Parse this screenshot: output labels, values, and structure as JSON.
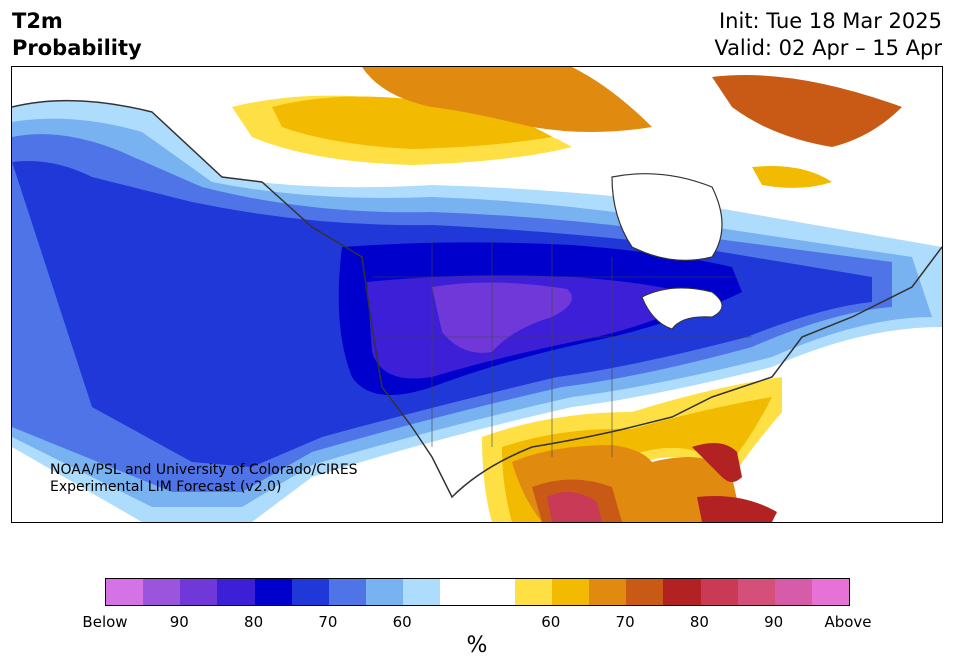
{
  "header": {
    "title_line1": "T2m",
    "title_line2": "Probability",
    "init": "Init: Tue 18 Mar 2025",
    "valid": "Valid: 02 Apr – 15 Apr"
  },
  "map": {
    "credit_line1": "NOAA/PSL and University of Colorado/CIRES",
    "credit_line2": "Experimental LIM Forecast (v2.0)"
  },
  "colorbar": {
    "colors": [
      "#d472e6",
      "#9b55dc",
      "#7038d8",
      "#3c1fd6",
      "#0000cd",
      "#2038d8",
      "#4e74e8",
      "#78b2f0",
      "#aedcfc",
      "#ffffff",
      "#ffffff",
      "#ffe044",
      "#f2ba00",
      "#e08a10",
      "#c85a16",
      "#b22222",
      "#c83a56",
      "#d4507a",
      "#d65caa",
      "#e672d6"
    ],
    "tick_labels": [
      "Below",
      "90",
      "80",
      "70",
      "60",
      "60",
      "70",
      "80",
      "90",
      "Above"
    ],
    "unit_label": "%"
  }
}
